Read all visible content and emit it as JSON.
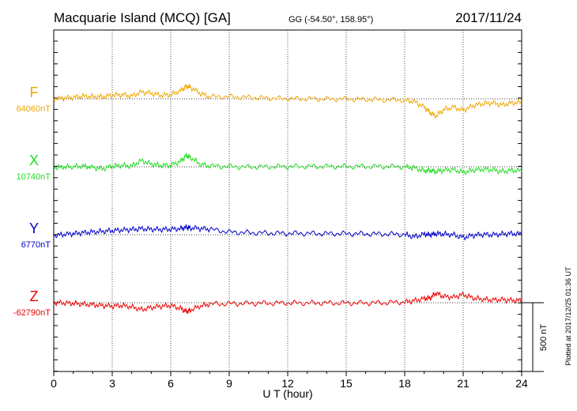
{
  "header": {
    "station": "Macquarie Island (MCQ)  [GA]",
    "coords": "GG (-54.50°, 158.95°)",
    "date": "2017/11/24"
  },
  "footer": {
    "plotted": "Plotted at 2017/12/25 01:36 UT"
  },
  "chart_data": {
    "type": "line",
    "title": "Macquarie Island (MCQ)  [GA]",
    "xlabel": "U T (hour)",
    "xlim": [
      0,
      24
    ],
    "x_ticks": [
      0,
      3,
      6,
      9,
      12,
      15,
      18,
      21,
      24
    ],
    "grid": true,
    "scale_bar": {
      "label": "500 nT",
      "value": 500
    },
    "series": [
      {
        "name": "F",
        "label": "F",
        "baseline_label": "64060nT",
        "baseline": 64060,
        "color": "#f0a800",
        "x": [
          0,
          0.5,
          1,
          1.5,
          2,
          2.5,
          3,
          3.5,
          4,
          4.5,
          5,
          5.5,
          6,
          6.5,
          6.8,
          7,
          7.5,
          8,
          9,
          10,
          11,
          12,
          13,
          14,
          15,
          16,
          17,
          18,
          18.5,
          19,
          19.3,
          19.6,
          20,
          20.5,
          21,
          21.5,
          22,
          22.5,
          23,
          23.5,
          24
        ],
        "y": [
          64060,
          64065,
          64070,
          64080,
          64075,
          64075,
          64085,
          64090,
          64080,
          64110,
          64100,
          64085,
          64090,
          64120,
          64150,
          64145,
          64100,
          64075,
          64075,
          64070,
          64065,
          64060,
          64060,
          64058,
          64058,
          64055,
          64052,
          64050,
          64040,
          64000,
          63960,
          63935,
          63980,
          64000,
          63975,
          64010,
          64025,
          64030,
          64015,
          64030,
          64035
        ]
      },
      {
        "name": "X",
        "label": "X",
        "baseline_label": "10740nT",
        "baseline": 10740,
        "color": "#22dd22",
        "x": [
          0,
          0.5,
          1,
          1.5,
          2,
          2.5,
          3,
          3.5,
          4,
          4.5,
          5,
          5.5,
          6,
          6.5,
          6.8,
          7,
          7.5,
          8,
          9,
          10,
          11,
          12,
          13,
          14,
          15,
          16,
          17,
          18,
          18.5,
          19,
          19.3,
          19.6,
          20,
          20.5,
          21,
          21.5,
          22,
          22.5,
          23,
          23.5,
          24
        ],
        "y": [
          10735,
          10738,
          10740,
          10745,
          10735,
          10725,
          10745,
          10750,
          10745,
          10785,
          10760,
          10750,
          10750,
          10780,
          10820,
          10810,
          10760,
          10745,
          10742,
          10738,
          10740,
          10742,
          10742,
          10742,
          10742,
          10742,
          10742,
          10740,
          10732,
          10710,
          10715,
          10705,
          10715,
          10720,
          10700,
          10715,
          10722,
          10718,
          10705,
          10715,
          10710
        ]
      },
      {
        "name": "Y",
        "label": "Y",
        "baseline_label": "6770nT",
        "baseline": 6770,
        "color": "#0000cc",
        "x": [
          0,
          0.5,
          1,
          1.5,
          2,
          2.5,
          3,
          3.5,
          4,
          4.5,
          5,
          5.5,
          6,
          6.5,
          6.8,
          7,
          7.5,
          8,
          9,
          10,
          11,
          12,
          13,
          14,
          15,
          16,
          17,
          18,
          18.5,
          19,
          19.3,
          19.6,
          20,
          20.5,
          21,
          21.5,
          22,
          22.5,
          23,
          23.5,
          24
        ],
        "y": [
          6765,
          6772,
          6778,
          6785,
          6790,
          6795,
          6800,
          6805,
          6808,
          6815,
          6810,
          6808,
          6810,
          6815,
          6825,
          6820,
          6815,
          6810,
          6790,
          6785,
          6782,
          6780,
          6780,
          6778,
          6778,
          6776,
          6775,
          6772,
          6755,
          6775,
          6768,
          6778,
          6775,
          6770,
          6750,
          6765,
          6772,
          6770,
          6775,
          6778,
          6775
        ]
      },
      {
        "name": "Z",
        "label": "Z",
        "baseline_label": "-62790nT",
        "baseline": -62790,
        "color": "#ee0000",
        "x": [
          0,
          0.5,
          1,
          1.5,
          2,
          2.5,
          3,
          3.5,
          4,
          4.5,
          5,
          5.5,
          6,
          6.5,
          6.8,
          7,
          7.5,
          8,
          9,
          10,
          11,
          12,
          13,
          14,
          15,
          16,
          17,
          18,
          18.5,
          19,
          19.3,
          19.6,
          20,
          20.5,
          21,
          21.5,
          22,
          22.5,
          23,
          23.5,
          24
        ],
        "y": [
          -62790,
          -62792,
          -62795,
          -62800,
          -62805,
          -62810,
          -62815,
          -62810,
          -62820,
          -62840,
          -62825,
          -62815,
          -62810,
          -62830,
          -62855,
          -62845,
          -62815,
          -62800,
          -62797,
          -62795,
          -62793,
          -62792,
          -62792,
          -62792,
          -62792,
          -62792,
          -62790,
          -62785,
          -62775,
          -62760,
          -62755,
          -62720,
          -62745,
          -62750,
          -62730,
          -62755,
          -62765,
          -62770,
          -62768,
          -62772,
          -62775
        ]
      }
    ]
  }
}
